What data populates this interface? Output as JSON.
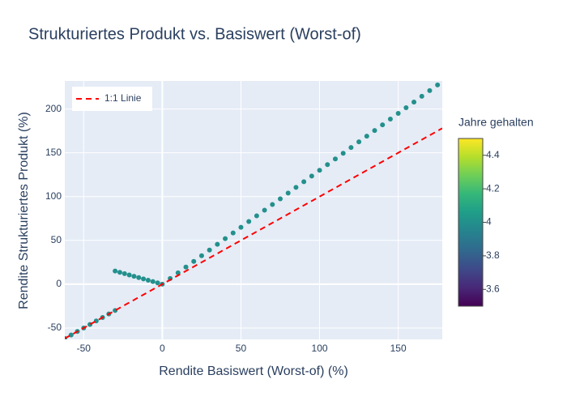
{
  "chart_data": {
    "type": "scatter",
    "title": "Strukturiertes Produkt vs. Basiswert (Worst-of)",
    "x_label": "Rendite Basiswert (Worst-of) (%)",
    "y_label": "Rendite Strukturiertes Produkt (%)",
    "xlim": [
      -62,
      178
    ],
    "ylim": [
      -63,
      232
    ],
    "xticks": [
      -50,
      0,
      50,
      100,
      150
    ],
    "yticks": [
      -50,
      0,
      50,
      100,
      150,
      200
    ],
    "grid": true,
    "legend_position": "top-left",
    "colorbar": {
      "title": "Jahre gehalten",
      "lim": [
        3.5,
        4.5
      ],
      "ticks": [
        3.6,
        3.8,
        4,
        4.2,
        4.4
      ],
      "colorscale": "viridis"
    },
    "series": [
      {
        "x": [
          -62,
          -58,
          -54,
          -50,
          -46,
          -42,
          -38,
          -34,
          -30,
          -30,
          -27,
          -24,
          -21,
          -18,
          -15,
          -12,
          -9,
          -6,
          -3,
          0,
          5,
          10,
          15,
          20,
          25,
          30,
          35,
          40,
          45,
          50,
          55,
          60,
          65,
          70,
          75,
          80,
          85,
          90,
          95,
          100,
          105,
          110,
          115,
          120,
          125,
          130,
          135,
          140,
          145,
          150,
          155,
          160,
          165,
          170,
          175
        ],
        "values": [
          -62,
          -58,
          -54,
          -50,
          -46,
          -42,
          -38,
          -34,
          -30,
          15,
          13.5,
          12,
          10.5,
          9,
          7.5,
          6,
          4.5,
          3,
          1.5,
          0,
          6.5,
          13,
          19.5,
          26,
          32.5,
          39,
          45.5,
          52,
          58.5,
          65,
          71.5,
          78,
          84.5,
          91,
          97.5,
          104,
          110.5,
          117,
          123.5,
          130,
          136.5,
          143,
          149.5,
          156,
          162.5,
          169,
          175.5,
          182,
          188.5,
          195,
          201.5,
          208,
          214.5,
          221,
          227.5
        ],
        "color_values": [
          4,
          4,
          4,
          4,
          4,
          4,
          4,
          4,
          4,
          4,
          4,
          4,
          4,
          4,
          4,
          4,
          4,
          4,
          4,
          4,
          4,
          4,
          4,
          4,
          4,
          4,
          4,
          4,
          4,
          4,
          4,
          4,
          4,
          4,
          4,
          4,
          4,
          4,
          4,
          4,
          4,
          4,
          4,
          4,
          4,
          4,
          4,
          4,
          4,
          4,
          4,
          4,
          4,
          4,
          4
        ]
      },
      {
        "name": "1:1 Linie",
        "color": "#ff0000",
        "mode": "dashed-line",
        "x": [
          -62,
          178
        ],
        "values": [
          -62,
          178
        ]
      }
    ]
  }
}
